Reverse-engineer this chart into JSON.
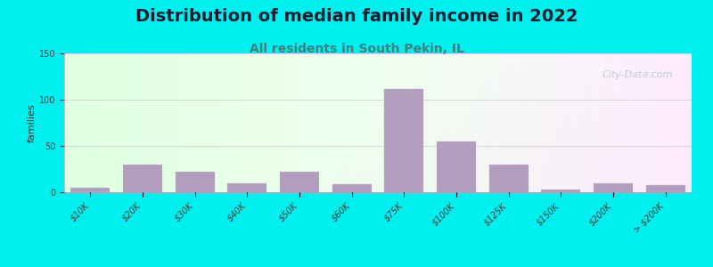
{
  "title": "Distribution of median family income in 2022",
  "subtitle": "All residents in South Pekin, IL",
  "ylabel": "families",
  "categories": [
    "$10K",
    "$20K",
    "$30K",
    "$40K",
    "$50K",
    "$60K",
    "$75K",
    "$100K",
    "$125K",
    "$150K",
    "$200K",
    "> $200K"
  ],
  "values": [
    5,
    30,
    22,
    10,
    22,
    9,
    112,
    55,
    30,
    3,
    10,
    8
  ],
  "bar_color": "#b39dbd",
  "bar_edge_color": "#c8b8d4",
  "ylim": [
    0,
    150
  ],
  "yticks": [
    0,
    50,
    100,
    150
  ],
  "bg_outer": "#00efef",
  "title_fontsize": 14,
  "subtitle_fontsize": 10,
  "watermark_text": "City-Data.com",
  "watermark_color": "#b8c8d0",
  "ylabel_fontsize": 8,
  "tick_fontsize": 7
}
